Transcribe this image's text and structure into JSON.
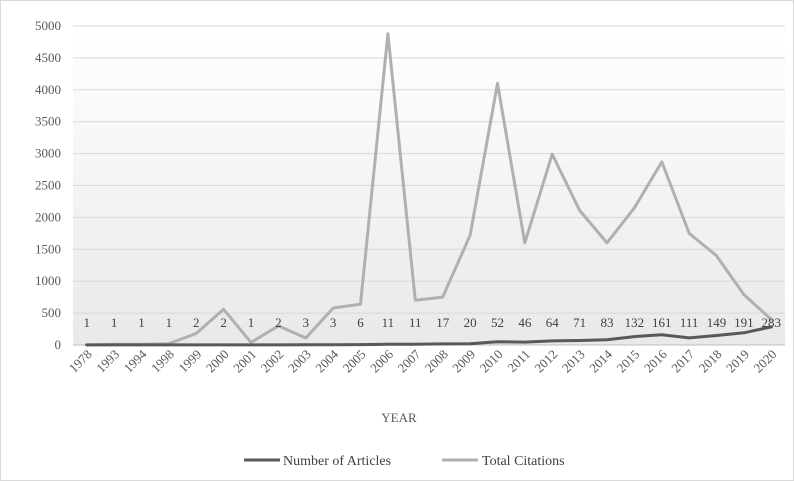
{
  "chart_data": {
    "type": "line",
    "title": "",
    "xlabel": "YEAR",
    "ylabel": "",
    "ylim": [
      0,
      5000
    ],
    "yticks": [
      0,
      500,
      1000,
      1500,
      2000,
      2500,
      3000,
      3500,
      4000,
      4500,
      5000
    ],
    "grid": "horizontal",
    "legend_position": "bottom",
    "categories": [
      "1978",
      "1993",
      "1994",
      "1998",
      "1999",
      "2000",
      "2001",
      "2002",
      "2003",
      "2004",
      "2005",
      "2006",
      "2007",
      "2008",
      "2009",
      "2010",
      "2011",
      "2012",
      "2013",
      "2014",
      "2015",
      "2016",
      "2017",
      "2018",
      "2019",
      "2020"
    ],
    "series": [
      {
        "name": "Number of Articles",
        "color": "#595959",
        "values": [
          1,
          1,
          1,
          1,
          2,
          2,
          1,
          2,
          3,
          3,
          6,
          11,
          11,
          17,
          20,
          52,
          46,
          64,
          71,
          83,
          132,
          161,
          111,
          149,
          191,
          283
        ],
        "data_labels": [
          "1",
          "1",
          "1",
          "1",
          "2",
          "2",
          "1",
          "2",
          "3",
          "3",
          "6",
          "11",
          "11",
          "17",
          "20",
          "52",
          "46",
          "64",
          "71",
          "83",
          "132",
          "161",
          "111",
          "149",
          "191",
          "283"
        ]
      },
      {
        "name": "Total Citations",
        "color": "#b0b0b0",
        "values": [
          0,
          10,
          10,
          20,
          180,
          560,
          40,
          300,
          110,
          580,
          640,
          4880,
          700,
          750,
          1720,
          4100,
          1600,
          2990,
          2110,
          1600,
          2150,
          2870,
          1750,
          1400,
          790,
          400
        ]
      }
    ]
  }
}
